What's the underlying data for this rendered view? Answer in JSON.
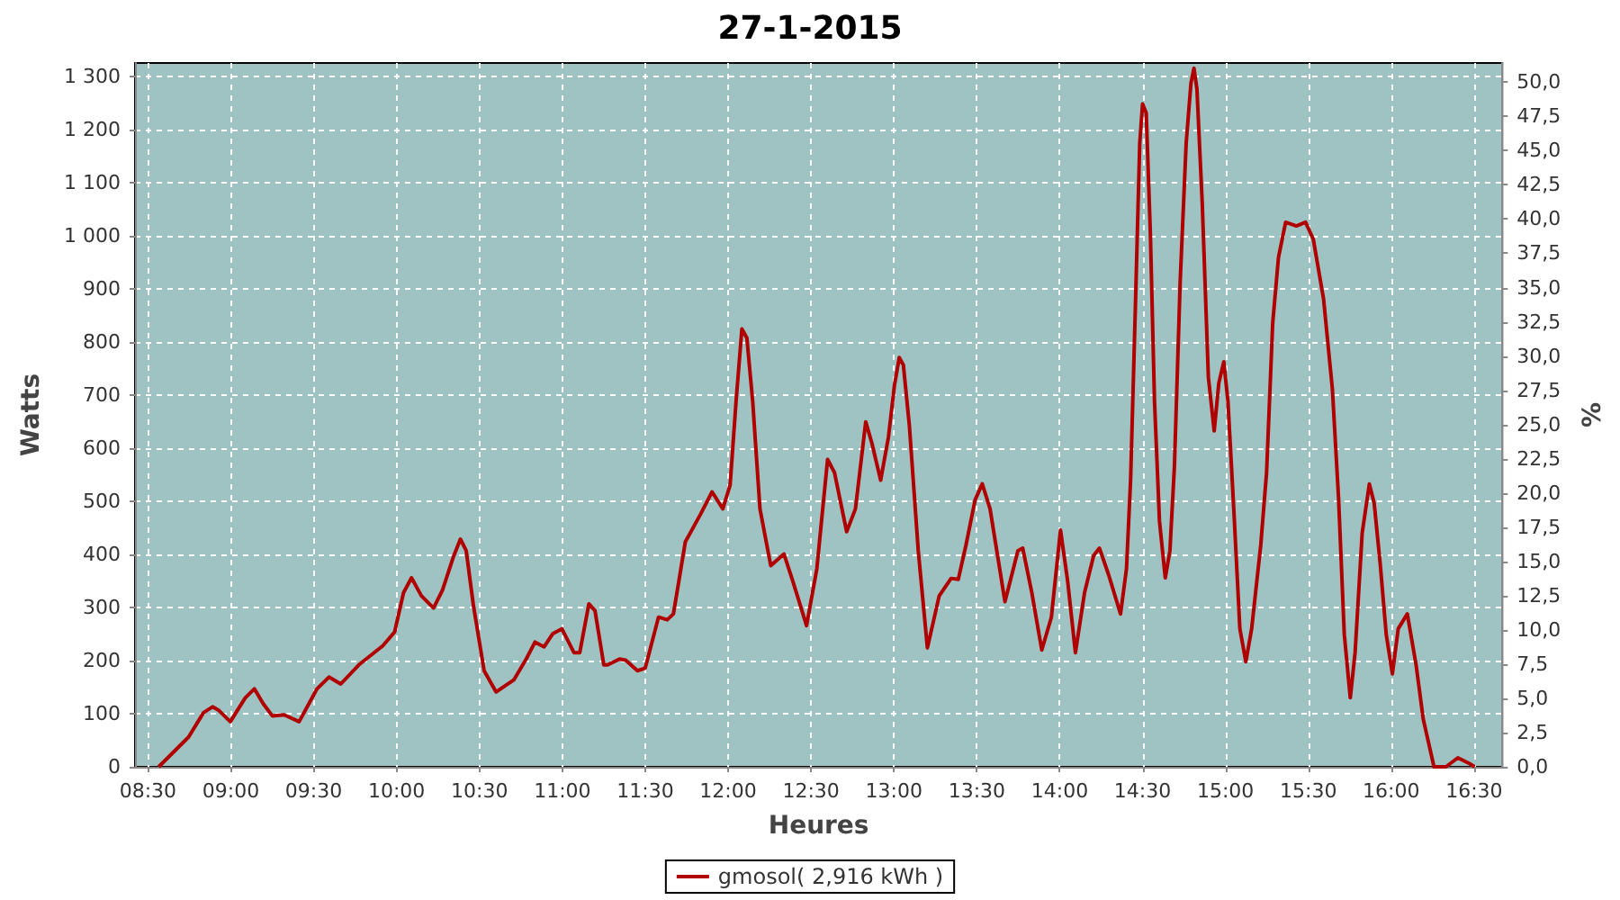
{
  "chart_data": {
    "type": "line",
    "title": "27-1-2015",
    "xlabel": "Heures",
    "ylabel": "Watts",
    "y2label": "%",
    "x": [
      8.565,
      8.655,
      8.745,
      8.835,
      8.89,
      8.925,
      8.997,
      9.087,
      9.142,
      9.195,
      9.25,
      9.322,
      9.412,
      9.52,
      9.592,
      9.663,
      9.772,
      9.917,
      9.988,
      10.042,
      10.09,
      10.15,
      10.223,
      10.277,
      10.342,
      10.385,
      10.42,
      10.463,
      10.528,
      10.6,
      10.708,
      10.782,
      10.835,
      10.89,
      10.943,
      10.997,
      11.07,
      11.105,
      11.16,
      11.197,
      11.25,
      11.273,
      11.345,
      11.382,
      11.453,
      11.5,
      11.58,
      11.633,
      11.67,
      11.742,
      11.832,
      11.903,
      11.968,
      12.012,
      12.048,
      12.083,
      12.113,
      12.148,
      12.192,
      12.257,
      12.337,
      12.39,
      12.473,
      12.535,
      12.6,
      12.642,
      12.715,
      12.768,
      12.83,
      12.867,
      12.92,
      12.967,
      13.003,
      13.032,
      13.057,
      13.093,
      13.147,
      13.202,
      13.273,
      13.345,
      13.388,
      13.435,
      13.49,
      13.533,
      13.58,
      13.67,
      13.748,
      13.777,
      13.832,
      13.892,
      13.95,
      14.005,
      14.048,
      14.095,
      14.15,
      14.205,
      14.24,
      14.295,
      14.367,
      14.403,
      14.428,
      14.457,
      14.483,
      14.5,
      14.522,
      14.547,
      14.572,
      14.602,
      14.637,
      14.665,
      14.692,
      14.727,
      14.763,
      14.792,
      14.81,
      14.828,
      14.86,
      14.897,
      14.932,
      14.96,
      14.99,
      15.015,
      15.052,
      15.087,
      15.123,
      15.158,
      15.213,
      15.248,
      15.285,
      15.32,
      15.363,
      15.428,
      15.483,
      15.53,
      15.592,
      15.645,
      15.682,
      15.717,
      15.753,
      15.782,
      15.825,
      15.868,
      15.897,
      15.933,
      15.97,
      16.007,
      16.042,
      16.097,
      16.15,
      16.193,
      16.258,
      16.33,
      16.402,
      16.473,
      16.503
    ],
    "series": [
      {
        "name": "gmosol( 2,916 kWh )",
        "color": "#b00000",
        "values": [
          0,
          28,
          56,
          102,
          113,
          107,
          85,
          130,
          147,
          119,
          96,
          98,
          85,
          147,
          169,
          156,
          192,
          228,
          254,
          328,
          356,
          322,
          299,
          333,
          395,
          429,
          407,
          305,
          181,
          141,
          164,
          203,
          235,
          226,
          251,
          260,
          215,
          215,
          307,
          294,
          192,
          192,
          203,
          201,
          181,
          186,
          282,
          277,
          288,
          424,
          475,
          518,
          486,
          531,
          689,
          825,
          808,
          689,
          486,
          379,
          401,
          350,
          266,
          373,
          579,
          554,
          443,
          486,
          650,
          610,
          540,
          621,
          718,
          771,
          757,
          644,
          407,
          224,
          322,
          355,
          353,
          418,
          503,
          533,
          486,
          311,
          407,
          412,
          328,
          220,
          282,
          446,
          350,
          215,
          328,
          398,
          412,
          362,
          288,
          373,
          542,
          870,
          1175,
          1249,
          1232,
          1006,
          689,
          463,
          356,
          407,
          565,
          915,
          1175,
          1288,
          1316,
          1277,
          1062,
          734,
          633,
          723,
          763,
          689,
          475,
          260,
          198,
          260,
          418,
          554,
          836,
          960,
          1026,
          1019,
          1026,
          994,
          881,
          712,
          508,
          249,
          130,
          215,
          441,
          533,
          497,
          384,
          249,
          175,
          260,
          288,
          192,
          90,
          0,
          0,
          17,
          6,
          0
        ]
      }
    ],
    "xlim": [
      8.422,
      16.67
    ],
    "xticks": [
      {
        "value": 8.5,
        "label": "08:30"
      },
      {
        "value": 9,
        "label": "09:00"
      },
      {
        "value": 9.5,
        "label": "09:30"
      },
      {
        "value": 10,
        "label": "10:00"
      },
      {
        "value": 10.5,
        "label": "10:30"
      },
      {
        "value": 11,
        "label": "11:00"
      },
      {
        "value": 11.5,
        "label": "11:30"
      },
      {
        "value": 12,
        "label": "12:00"
      },
      {
        "value": 12.5,
        "label": "12:30"
      },
      {
        "value": 13,
        "label": "13:00"
      },
      {
        "value": 13.5,
        "label": "13:30"
      },
      {
        "value": 14,
        "label": "14:00"
      },
      {
        "value": 14.5,
        "label": "14:30"
      },
      {
        "value": 15,
        "label": "15:00"
      },
      {
        "value": 15.5,
        "label": "15:30"
      },
      {
        "value": 16,
        "label": "16:00"
      },
      {
        "value": 16.5,
        "label": "16:30"
      }
    ],
    "ylim": [
      0,
      1326
    ],
    "yticks": [
      0,
      100,
      200,
      300,
      400,
      500,
      600,
      700,
      800,
      900,
      {
        "value": 1000,
        "label": "1 000"
      },
      {
        "value": 1100,
        "label": "1 100"
      },
      {
        "value": 1200,
        "label": "1 200"
      },
      {
        "value": 1300,
        "label": "1 300"
      }
    ],
    "y2lim": [
      0,
      51.4
    ],
    "y2ticks": [
      {
        "value": 0,
        "label": "0,0"
      },
      {
        "value": 2.5,
        "label": "2,5"
      },
      {
        "value": 5,
        "label": "5,0"
      },
      {
        "value": 7.5,
        "label": "7,5"
      },
      {
        "value": 10,
        "label": "10,0"
      },
      {
        "value": 12.5,
        "label": "12,5"
      },
      {
        "value": 15,
        "label": "15,0"
      },
      {
        "value": 17.5,
        "label": "17,5"
      },
      {
        "value": 20,
        "label": "20,0"
      },
      {
        "value": 22.5,
        "label": "22,5"
      },
      {
        "value": 25,
        "label": "25,0"
      },
      {
        "value": 27.5,
        "label": "27,5"
      },
      {
        "value": 30,
        "label": "30,0"
      },
      {
        "value": 32.5,
        "label": "32,5"
      },
      {
        "value": 35,
        "label": "35,0"
      },
      {
        "value": 37.5,
        "label": "37,5"
      },
      {
        "value": 40,
        "label": "40,0"
      },
      {
        "value": 42.5,
        "label": "42,5"
      },
      {
        "value": 45,
        "label": "45,0"
      },
      {
        "value": 47.5,
        "label": "47,5"
      },
      {
        "value": 50,
        "label": "50,0"
      }
    ],
    "grid": true,
    "legend": "bottom",
    "marker": "none",
    "line_style": "solid"
  }
}
